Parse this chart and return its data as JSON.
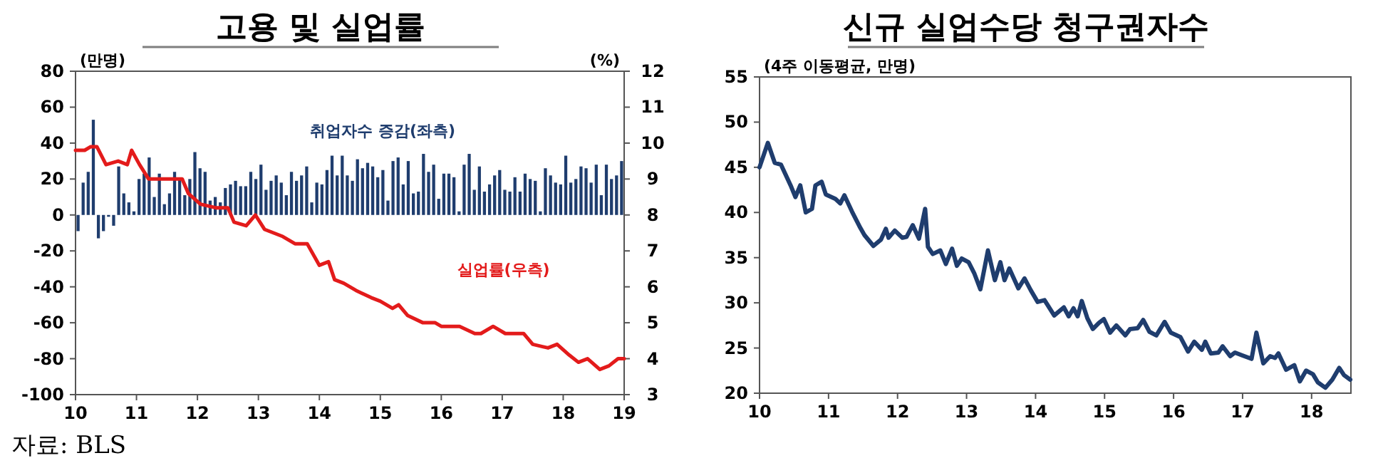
{
  "chart_data": [
    {
      "type": "bar",
      "title": "고용 및 실업률",
      "ylabel": "(만명)",
      "y2label": "(%)",
      "annotations": [
        "자료: BLS"
      ],
      "xlim": [
        10,
        19
      ],
      "xticks": [
        10,
        11,
        12,
        13,
        14,
        15,
        16,
        17,
        18,
        19
      ],
      "ylim": [
        -100,
        80
      ],
      "yticks": [
        -100,
        -80,
        -60,
        -40,
        -20,
        0,
        20,
        40,
        60,
        80
      ],
      "y2lim": [
        3,
        12
      ],
      "y2ticks": [
        3,
        4,
        5,
        6,
        7,
        8,
        9,
        10,
        11,
        12
      ],
      "series": [
        {
          "name": "취업자수 증감(좌측)",
          "color": "#1f3d6e",
          "x": [
            10.042,
            10.125,
            10.208,
            10.292,
            10.375,
            10.458,
            10.542,
            10.625,
            10.708,
            10.792,
            10.875,
            10.958,
            11.042,
            11.125,
            11.208,
            11.292,
            11.375,
            11.458,
            11.542,
            11.625,
            11.708,
            11.792,
            11.875,
            11.958,
            12.042,
            12.125,
            12.208,
            12.292,
            12.375,
            12.458,
            12.542,
            12.625,
            12.708,
            12.792,
            12.875,
            12.958,
            13.042,
            13.125,
            13.208,
            13.292,
            13.375,
            13.458,
            13.542,
            13.625,
            13.708,
            13.792,
            13.875,
            13.958,
            14.042,
            14.125,
            14.208,
            14.292,
            14.375,
            14.458,
            14.542,
            14.625,
            14.708,
            14.792,
            14.875,
            14.958,
            15.042,
            15.125,
            15.208,
            15.292,
            15.375,
            15.458,
            15.542,
            15.625,
            15.708,
            15.792,
            15.875,
            15.958,
            16.042,
            16.125,
            16.208,
            16.292,
            16.375,
            16.458,
            16.542,
            16.625,
            16.708,
            16.792,
            16.875,
            16.958,
            17.042,
            17.125,
            17.208,
            17.292,
            17.375,
            17.458,
            17.542,
            17.625,
            17.708,
            17.792,
            17.875,
            17.958,
            18.042,
            18.125,
            18.208,
            18.292,
            18.375,
            18.458,
            18.542,
            18.625,
            18.708,
            18.792,
            18.875,
            18.958
          ],
          "values": [
            -9,
            18,
            24,
            53,
            -13,
            -9,
            -1,
            -6,
            27,
            12,
            7,
            2,
            20,
            23,
            32,
            10,
            23,
            6,
            12,
            24,
            20,
            11,
            20,
            35,
            26,
            24,
            8,
            10,
            7,
            15,
            17,
            19,
            16,
            16,
            24,
            20,
            28,
            14,
            19,
            22,
            18,
            11,
            24,
            19,
            22,
            27,
            7,
            18,
            17,
            25,
            33,
            22,
            33,
            22,
            19,
            31,
            26,
            29,
            27,
            21,
            25,
            8,
            30,
            32,
            17,
            30,
            12,
            13,
            34,
            24,
            28,
            9,
            23,
            23,
            21,
            2,
            28,
            34,
            14,
            27,
            13,
            17,
            22,
            25,
            14,
            13,
            21,
            13,
            23,
            20,
            19,
            2,
            26,
            22,
            18,
            17,
            33,
            18,
            20,
            27,
            26,
            18,
            28,
            11,
            28,
            20,
            22,
            30
          ]
        },
        {
          "name": "실업률(우측)",
          "type": "line",
          "axis": "y2",
          "color": "#e31b1b",
          "x": [
            10.0,
            10.15,
            10.25,
            10.35,
            10.5,
            10.7,
            10.85,
            10.92,
            11.05,
            11.2,
            11.4,
            11.6,
            11.75,
            11.85,
            12.05,
            12.3,
            12.5,
            12.6,
            12.8,
            12.95,
            13.1,
            13.25,
            13.4,
            13.6,
            13.8,
            14.0,
            14.15,
            14.25,
            14.4,
            14.6,
            14.85,
            15.0,
            15.2,
            15.3,
            15.45,
            15.7,
            15.9,
            16.0,
            16.3,
            16.55,
            16.65,
            16.85,
            17.05,
            17.35,
            17.5,
            17.75,
            17.9,
            18.1,
            18.25,
            18.4,
            18.6,
            18.75,
            18.9,
            19.0
          ],
          "values": [
            9.8,
            9.8,
            9.9,
            9.9,
            9.4,
            9.5,
            9.4,
            9.8,
            9.4,
            9.0,
            9.0,
            9.0,
            9.0,
            8.6,
            8.3,
            8.2,
            8.2,
            7.8,
            7.7,
            8.0,
            7.6,
            7.5,
            7.4,
            7.2,
            7.2,
            6.6,
            6.7,
            6.2,
            6.1,
            5.9,
            5.7,
            5.6,
            5.4,
            5.5,
            5.2,
            5.0,
            5.0,
            4.9,
            4.9,
            4.7,
            4.7,
            4.9,
            4.7,
            4.7,
            4.4,
            4.3,
            4.4,
            4.1,
            3.9,
            4.0,
            3.7,
            3.8,
            4.0,
            4.0
          ]
        }
      ]
    },
    {
      "type": "line",
      "title": "신규 실업수당 청구권자수",
      "ylabel": "(4주 이동평균, 만명)",
      "xlim": [
        10,
        18.57
      ],
      "xticks": [
        10,
        11,
        12,
        13,
        14,
        15,
        16,
        17,
        18
      ],
      "ylim": [
        20,
        55
      ],
      "yticks": [
        20,
        25,
        30,
        35,
        40,
        45,
        50,
        55
      ],
      "series": [
        {
          "color": "#1f3d6e",
          "x": [
            10.0,
            10.12,
            10.22,
            10.31,
            10.45,
            10.52,
            10.59,
            10.67,
            10.76,
            10.81,
            10.9,
            10.96,
            11.1,
            11.17,
            11.23,
            11.34,
            11.46,
            11.52,
            11.65,
            11.76,
            11.83,
            11.87,
            11.96,
            12.07,
            12.13,
            12.22,
            12.31,
            12.4,
            12.44,
            12.51,
            12.62,
            12.7,
            12.79,
            12.86,
            12.93,
            13.03,
            13.11,
            13.2,
            13.31,
            13.41,
            13.49,
            13.55,
            13.62,
            13.75,
            13.84,
            13.93,
            14.03,
            14.13,
            14.27,
            14.41,
            14.48,
            14.55,
            14.61,
            14.67,
            14.75,
            14.83,
            14.92,
            14.99,
            15.08,
            15.17,
            15.3,
            15.37,
            15.48,
            15.56,
            15.65,
            15.75,
            15.87,
            15.96,
            16.1,
            16.21,
            16.3,
            16.41,
            16.46,
            16.54,
            16.65,
            16.71,
            16.82,
            16.89,
            16.99,
            17.13,
            17.2,
            17.3,
            17.4,
            17.47,
            17.52,
            17.63,
            17.75,
            17.83,
            17.92,
            18.02,
            18.09,
            18.2,
            18.3,
            18.4,
            18.47,
            18.56
          ],
          "values": [
            45.0,
            47.7,
            45.5,
            45.3,
            43.0,
            41.7,
            43.0,
            40.0,
            40.4,
            43.0,
            43.4,
            42.0,
            41.5,
            41.0,
            41.9,
            40.1,
            38.3,
            37.5,
            36.3,
            37.0,
            38.2,
            37.2,
            38.0,
            37.2,
            37.3,
            38.6,
            37.1,
            40.4,
            36.2,
            35.4,
            35.8,
            34.3,
            36.0,
            34.1,
            34.9,
            34.5,
            33.3,
            31.5,
            35.8,
            32.5,
            34.5,
            32.5,
            33.8,
            31.6,
            32.7,
            31.4,
            30.1,
            30.3,
            28.6,
            29.5,
            28.5,
            29.4,
            28.5,
            30.2,
            28.3,
            27.1,
            27.8,
            28.2,
            26.7,
            27.5,
            26.4,
            27.1,
            27.2,
            28.1,
            26.8,
            26.4,
            27.9,
            26.7,
            26.2,
            24.6,
            25.7,
            24.8,
            25.7,
            24.4,
            24.5,
            25.2,
            24.1,
            24.5,
            24.2,
            23.8,
            26.7,
            23.3,
            24.1,
            23.9,
            24.4,
            22.6,
            23.1,
            21.3,
            22.5,
            22.1,
            21.2,
            20.6,
            21.5,
            22.8,
            22.0,
            21.5
          ]
        }
      ]
    }
  ]
}
